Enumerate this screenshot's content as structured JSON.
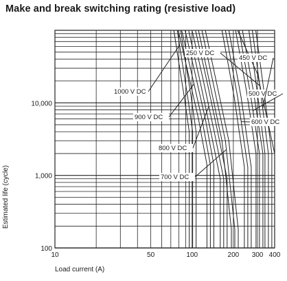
{
  "chart_data": {
    "type": "line",
    "title": "Make and break switching rating (resistive load)",
    "xlabel": "Load current (A)",
    "ylabel": "Estimated life (cycle)",
    "x_scale": "log",
    "y_scale": "log",
    "xlim": [
      10,
      400
    ],
    "ylim": [
      100,
      100000
    ],
    "x_ticks": [
      {
        "value": 10,
        "label": "10"
      },
      {
        "value": 50,
        "label": "50"
      },
      {
        "value": 100,
        "label": "100"
      },
      {
        "value": 200,
        "label": "200"
      },
      {
        "value": 300,
        "label": "300"
      },
      {
        "value": 400,
        "label": "400"
      }
    ],
    "y_ticks": [
      {
        "value": 100,
        "label": "100"
      },
      {
        "value": 1000,
        "label": "1,000"
      },
      {
        "value": 10000,
        "label": "10,000"
      }
    ],
    "grid": true,
    "series": [
      {
        "name": "1000 V DC",
        "x": [
          78,
          85,
          93,
          101
        ],
        "y": [
          100000,
          35000,
          12000,
          4000
        ],
        "lines": 3
      },
      {
        "name": "900 V DC",
        "x": [
          84,
          100,
          118,
          136
        ],
        "y": [
          100000,
          24000,
          6000,
          1400
        ],
        "lines": 3
      },
      {
        "name": "800 V DC",
        "x": [
          100,
          121,
          145,
          170
        ],
        "y": [
          100000,
          20000,
          4000,
          900
        ],
        "lines": 3
      },
      {
        "name": "700 V DC",
        "x": [
          118,
          145,
          175,
          205
        ],
        "y": [
          100000,
          16000,
          3000,
          180
        ],
        "lines": 3
      },
      {
        "name": "600 V DC",
        "x": [
          175,
          215,
          255
        ],
        "y": [
          100000,
          12000,
          1300
        ],
        "lines": 3
      },
      {
        "name": "500 V DC",
        "x": [
          220,
          265,
          310
        ],
        "y": [
          100000,
          14000,
          2000
        ],
        "lines": 3
      },
      {
        "name": "450 V DC",
        "x": [
          275,
          320,
          360
        ],
        "y": [
          100000,
          12000,
          2000
        ],
        "lines": 3
      },
      {
        "name": "250 V DC",
        "x": [
          215,
          300,
          400
        ],
        "y": [
          110000,
          25000,
          2000
        ],
        "lines": 1
      }
    ]
  }
}
